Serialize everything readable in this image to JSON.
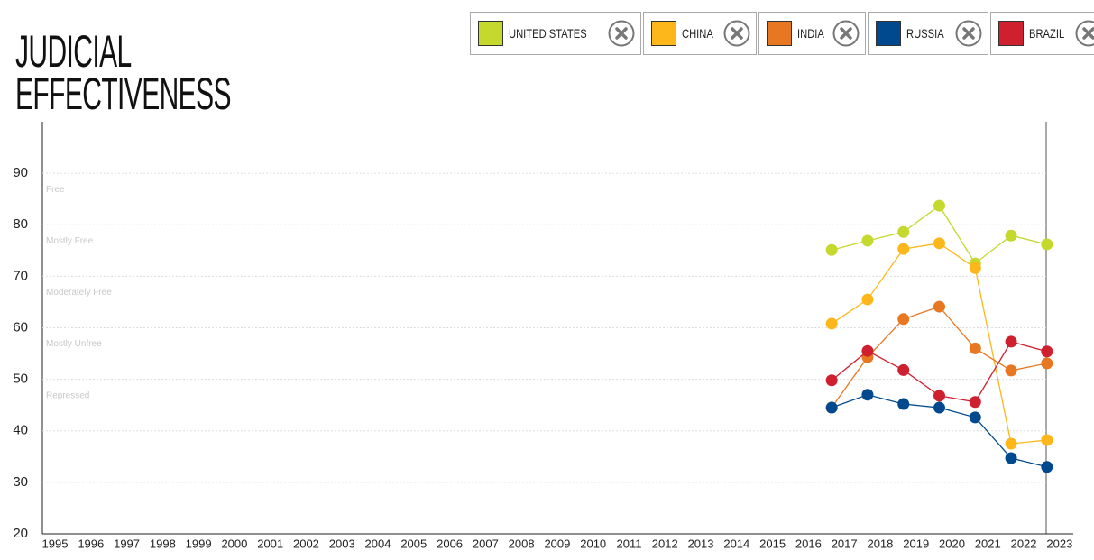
{
  "chart_data": {
    "type": "line",
    "title": "JUDICIAL EFFECTIVENESS",
    "categories": [
      "1995",
      "1996",
      "1997",
      "1998",
      "1999",
      "2000",
      "2001",
      "2002",
      "2003",
      "2004",
      "2005",
      "2006",
      "2007",
      "2008",
      "2009",
      "2010",
      "2011",
      "2012",
      "2013",
      "2014",
      "2015",
      "2016",
      "2017",
      "2018",
      "2019",
      "2020",
      "2021",
      "2022",
      "2023"
    ],
    "series": [
      {
        "name": "UNITED STATES",
        "color": "#c4d82e",
        "values": [
          null,
          null,
          null,
          null,
          null,
          null,
          null,
          null,
          null,
          null,
          null,
          null,
          null,
          null,
          null,
          null,
          null,
          null,
          null,
          null,
          null,
          null,
          75.1,
          76.9,
          78.6,
          83.7,
          72.5,
          77.9,
          76.2
        ]
      },
      {
        "name": "CHINA",
        "color": "#fdb71a",
        "values": [
          null,
          null,
          null,
          null,
          null,
          null,
          null,
          null,
          null,
          null,
          null,
          null,
          null,
          null,
          null,
          null,
          null,
          null,
          null,
          null,
          null,
          null,
          60.8,
          65.5,
          75.3,
          76.4,
          71.6,
          37.5,
          38.2
        ]
      },
      {
        "name": "INDIA",
        "color": "#e87722",
        "values": [
          null,
          null,
          null,
          null,
          null,
          null,
          null,
          null,
          null,
          null,
          null,
          null,
          null,
          null,
          null,
          null,
          null,
          null,
          null,
          null,
          null,
          null,
          44.5,
          54.3,
          61.7,
          64.1,
          56.0,
          51.7,
          53.1
        ]
      },
      {
        "name": "RUSSIA",
        "color": "#00498f",
        "values": [
          null,
          null,
          null,
          null,
          null,
          null,
          null,
          null,
          null,
          null,
          null,
          null,
          null,
          null,
          null,
          null,
          null,
          null,
          null,
          null,
          null,
          null,
          44.5,
          47.0,
          45.2,
          44.5,
          42.6,
          34.7,
          33.0
        ]
      },
      {
        "name": "BRAZIL",
        "color": "#cf2030",
        "values": [
          null,
          null,
          null,
          null,
          null,
          null,
          null,
          null,
          null,
          null,
          null,
          null,
          null,
          null,
          null,
          null,
          null,
          null,
          null,
          null,
          null,
          null,
          49.8,
          55.5,
          51.8,
          46.8,
          45.6,
          57.3,
          55.4
        ]
      }
    ],
    "bands": [
      "Free",
      "Mostly Free",
      "Moderately Free",
      "Mostly Unfree",
      "Repressed"
    ],
    "ylim": [
      20,
      100
    ],
    "yticks": [
      20,
      30,
      40,
      50,
      60,
      70,
      80,
      90
    ],
    "grid": true
  }
}
